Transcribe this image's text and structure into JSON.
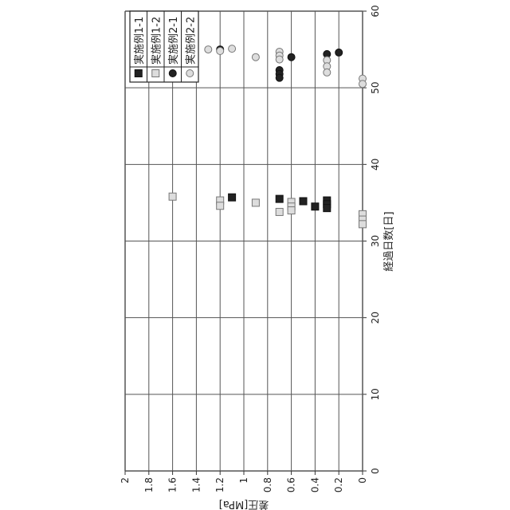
{
  "chart_data": {
    "type": "scatter",
    "orientation": "figure rotated 90° counter-clockwise",
    "xlabel": "経過日数[日]",
    "ylabel": "差圧[MPa]",
    "xlim": [
      0,
      60
    ],
    "ylim": [
      0,
      2
    ],
    "xticks": [
      "0",
      "10",
      "20",
      "30",
      "40",
      "50",
      "60"
    ],
    "yticks": [
      "0",
      "0.2",
      "0.4",
      "0.6",
      "0.8",
      "1",
      "1.2",
      "1.4",
      "1.6",
      "1.8",
      "2"
    ],
    "grid": true,
    "legend_placement": "top-right",
    "series": [
      {
        "name": "実施例1-1",
        "marker": "square-dark",
        "points": [
          [
            35.7,
            1.1
          ],
          [
            35.5,
            0.7
          ],
          [
            35.2,
            0.5
          ],
          [
            34.5,
            0.4
          ],
          [
            35.3,
            0.3
          ],
          [
            34.8,
            0.3
          ],
          [
            34.3,
            0.3
          ]
        ]
      },
      {
        "name": "実施例1-2",
        "marker": "square-light",
        "points": [
          [
            35.8,
            1.6
          ],
          [
            35.3,
            1.2
          ],
          [
            34.6,
            1.2
          ],
          [
            35.0,
            0.9
          ],
          [
            33.8,
            0.7
          ],
          [
            35.1,
            0.6
          ],
          [
            34.5,
            0.6
          ],
          [
            34.0,
            0.6
          ],
          [
            33.5,
            0
          ],
          [
            32.8,
            0
          ],
          [
            32.2,
            0
          ]
        ]
      },
      {
        "name": "実施例2-1",
        "marker": "circle-dark",
        "points": [
          [
            55.0,
            1.2
          ],
          [
            54.0,
            0.6
          ],
          [
            54.4,
            0.3
          ],
          [
            54.6,
            0.2
          ],
          [
            52.3,
            0.7
          ],
          [
            51.8,
            0.7
          ],
          [
            51.3,
            0.7
          ]
        ]
      },
      {
        "name": "実施例2-2",
        "marker": "circle-light",
        "points": [
          [
            55.0,
            1.3
          ],
          [
            54.8,
            1.2
          ],
          [
            55.1,
            1.1
          ],
          [
            54.0,
            0.9
          ],
          [
            54.7,
            0.7
          ],
          [
            54.2,
            0.7
          ],
          [
            53.7,
            0.7
          ],
          [
            53.6,
            0.3
          ],
          [
            52.8,
            0.3
          ],
          [
            52.0,
            0.3
          ],
          [
            51.2,
            0
          ],
          [
            50.5,
            0
          ]
        ]
      }
    ]
  },
  "colors": {
    "dark": "#222222",
    "light": "#dddddd",
    "grid": "#555555"
  }
}
